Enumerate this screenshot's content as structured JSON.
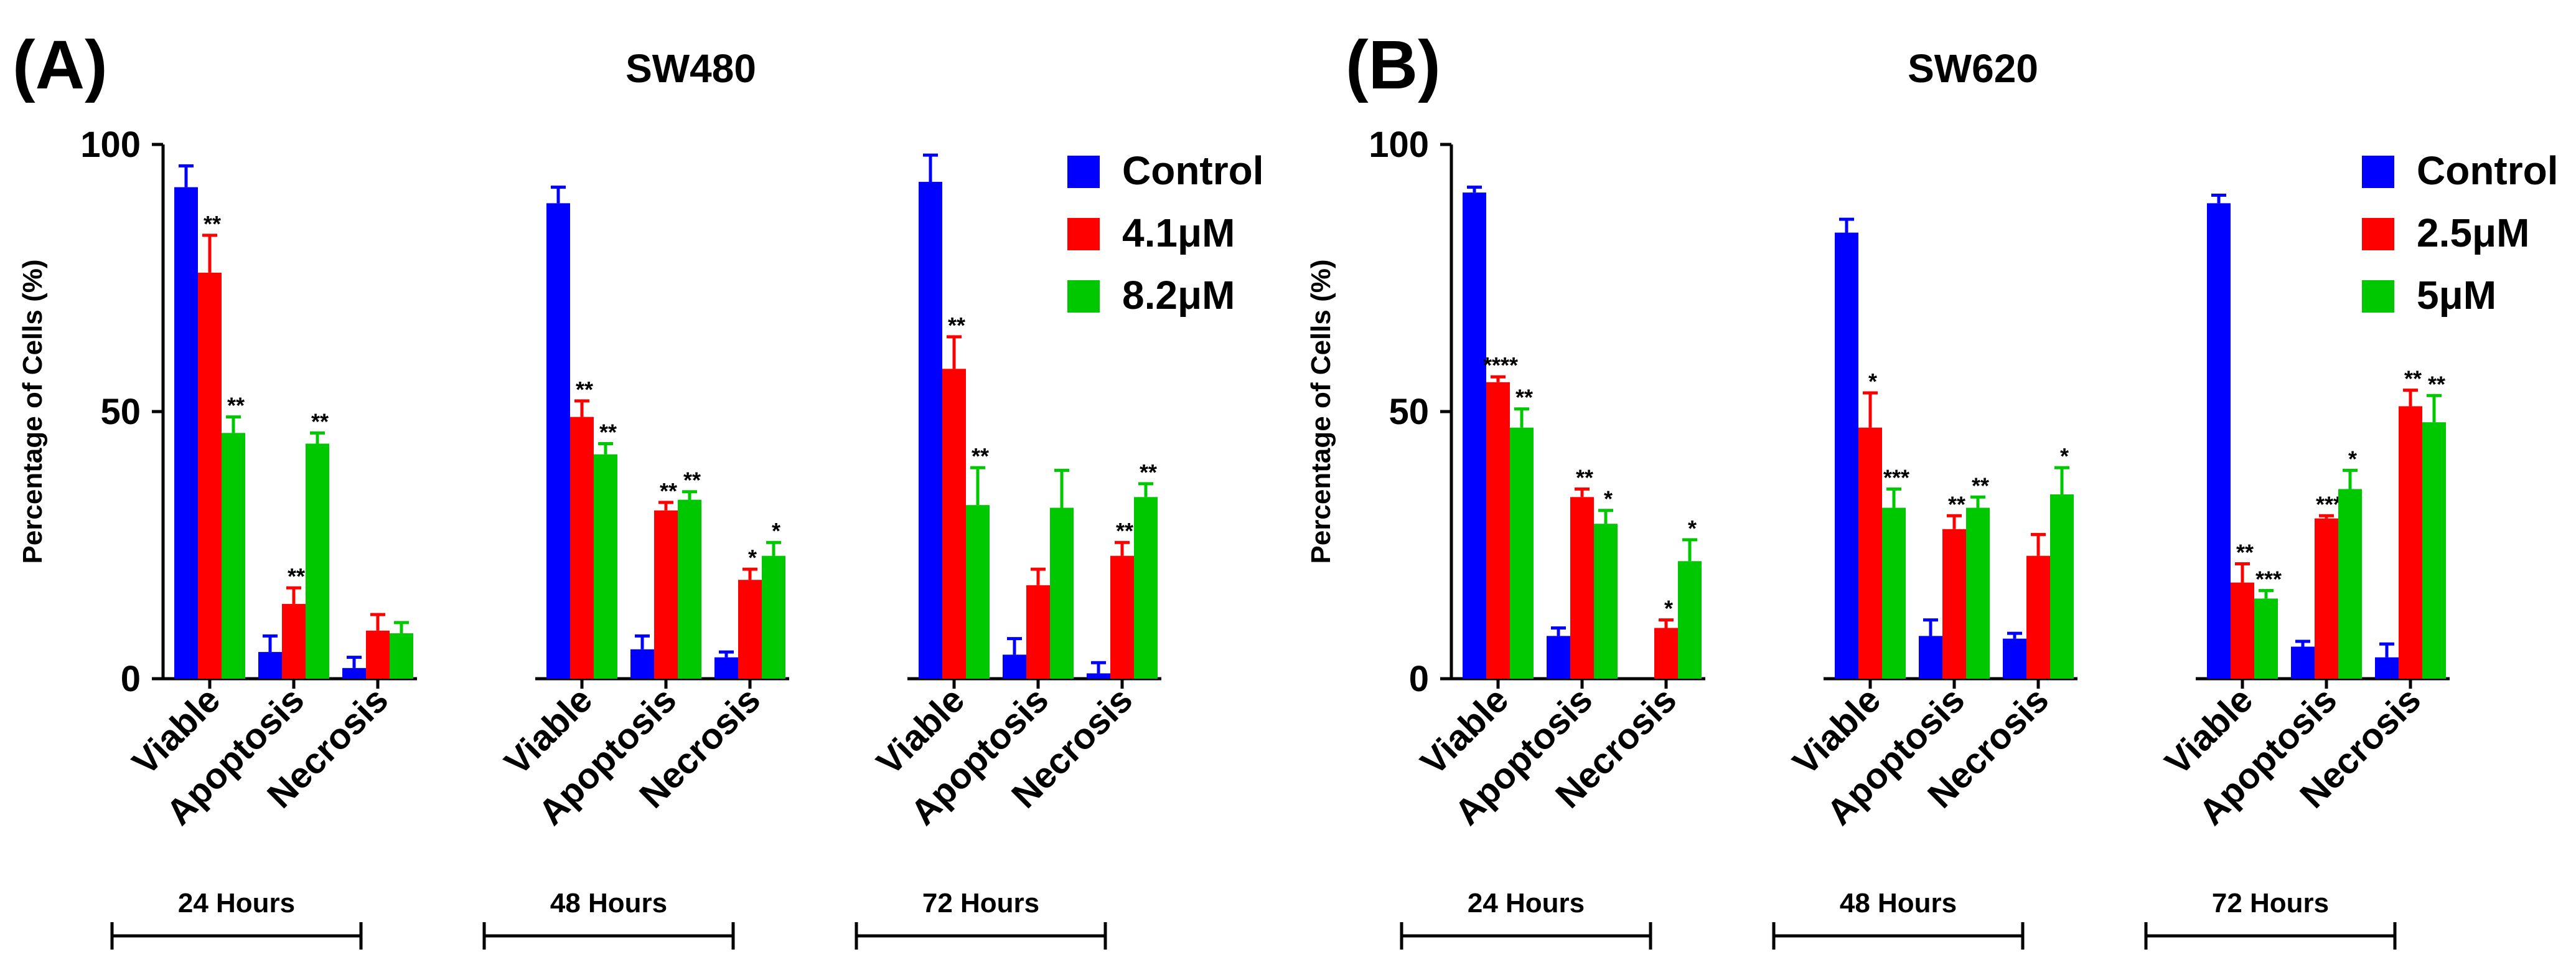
{
  "colors": {
    "control": "#0000ff",
    "low": "#ff0000",
    "high": "#00c800",
    "axis": "#000000"
  },
  "chart_data": [
    {
      "type": "bar",
      "panel_label": "(A)",
      "title": "SW480",
      "ylabel": "Percentage of Cells (%)",
      "ylim": [
        0,
        100
      ],
      "yticks": [
        "0",
        "50",
        "100"
      ],
      "legend": [
        "Control",
        "4.1μM",
        "8.2μM"
      ],
      "legend_position": "top-right",
      "categories": [
        "Viable",
        "Apoptosis",
        "Necrosis"
      ],
      "groups": [
        {
          "label": "24 Hours",
          "values": [
            [
              92,
              76,
              46
            ],
            [
              5,
              14,
              44
            ],
            [
              2,
              9,
              8.5
            ]
          ],
          "errors": [
            [
              4,
              7,
              3
            ],
            [
              3,
              3,
              2
            ],
            [
              2,
              3,
              2
            ]
          ],
          "sig": [
            [
              "",
              "**",
              "**"
            ],
            [
              "",
              "**",
              "**"
            ],
            [
              "",
              "",
              ""
            ]
          ]
        },
        {
          "label": "48 Hours",
          "values": [
            [
              89,
              49,
              42
            ],
            [
              5.5,
              31.5,
              33.5
            ],
            [
              4,
              18.5,
              23
            ]
          ],
          "errors": [
            [
              3,
              3,
              2
            ],
            [
              2.5,
              1.5,
              1.5
            ],
            [
              1,
              2,
              2.5
            ]
          ],
          "sig": [
            [
              "",
              "**",
              "**"
            ],
            [
              "",
              "**",
              "**"
            ],
            [
              "",
              "*",
              "*"
            ]
          ]
        },
        {
          "label": "72 Hours",
          "values": [
            [
              93,
              58,
              32.5
            ],
            [
              4.5,
              17.5,
              32
            ],
            [
              1,
              23,
              34
            ]
          ],
          "errors": [
            [
              5,
              6,
              7
            ],
            [
              3,
              3,
              7
            ],
            [
              2,
              2.5,
              2.5
            ]
          ],
          "sig": [
            [
              "",
              "**",
              "**"
            ],
            [
              "",
              "",
              ""
            ],
            [
              "",
              "**",
              "**"
            ]
          ]
        }
      ]
    },
    {
      "type": "bar",
      "panel_label": "(B)",
      "title": "SW620",
      "ylabel": "Percentage of Cells (%)",
      "ylim": [
        0,
        100
      ],
      "yticks": [
        "0",
        "50",
        "100"
      ],
      "legend": [
        "Control",
        "2.5μM",
        "5μM"
      ],
      "legend_position": "top-right",
      "categories": [
        "Viable",
        "Apoptosis",
        "Necrosis"
      ],
      "groups": [
        {
          "label": "24 Hours",
          "values": [
            [
              91,
              55.5,
              47
            ],
            [
              8,
              34,
              29
            ],
            [
              0,
              9.5,
              22
            ]
          ],
          "errors": [
            [
              1,
              1,
              3.5
            ],
            [
              1.5,
              1.5,
              2.5
            ],
            [
              0,
              1.5,
              4
            ]
          ],
          "sig": [
            [
              "",
              "****",
              "**"
            ],
            [
              "",
              "**",
              "*"
            ],
            [
              "",
              "*",
              "*"
            ]
          ]
        },
        {
          "label": "48 Hours",
          "values": [
            [
              83.5,
              47,
              32
            ],
            [
              8,
              28,
              32
            ],
            [
              7.5,
              23,
              34.5
            ]
          ],
          "errors": [
            [
              2.5,
              6.5,
              3.5
            ],
            [
              3,
              2.5,
              2
            ],
            [
              1,
              4,
              5
            ]
          ],
          "sig": [
            [
              "",
              "*",
              "***"
            ],
            [
              "",
              "**",
              "**"
            ],
            [
              "",
              "",
              "*"
            ]
          ]
        },
        {
          "label": "72 Hours",
          "values": [
            [
              89,
              18,
              15
            ],
            [
              6,
              30,
              35.5
            ],
            [
              4,
              51,
              48
            ]
          ],
          "errors": [
            [
              1.5,
              3.5,
              1.5
            ],
            [
              1,
              0.5,
              3.5
            ],
            [
              2.5,
              3,
              5
            ]
          ],
          "sig": [
            [
              "",
              "**",
              "***"
            ],
            [
              "",
              "***",
              "*"
            ],
            [
              "",
              "**",
              "**"
            ]
          ]
        }
      ]
    }
  ]
}
